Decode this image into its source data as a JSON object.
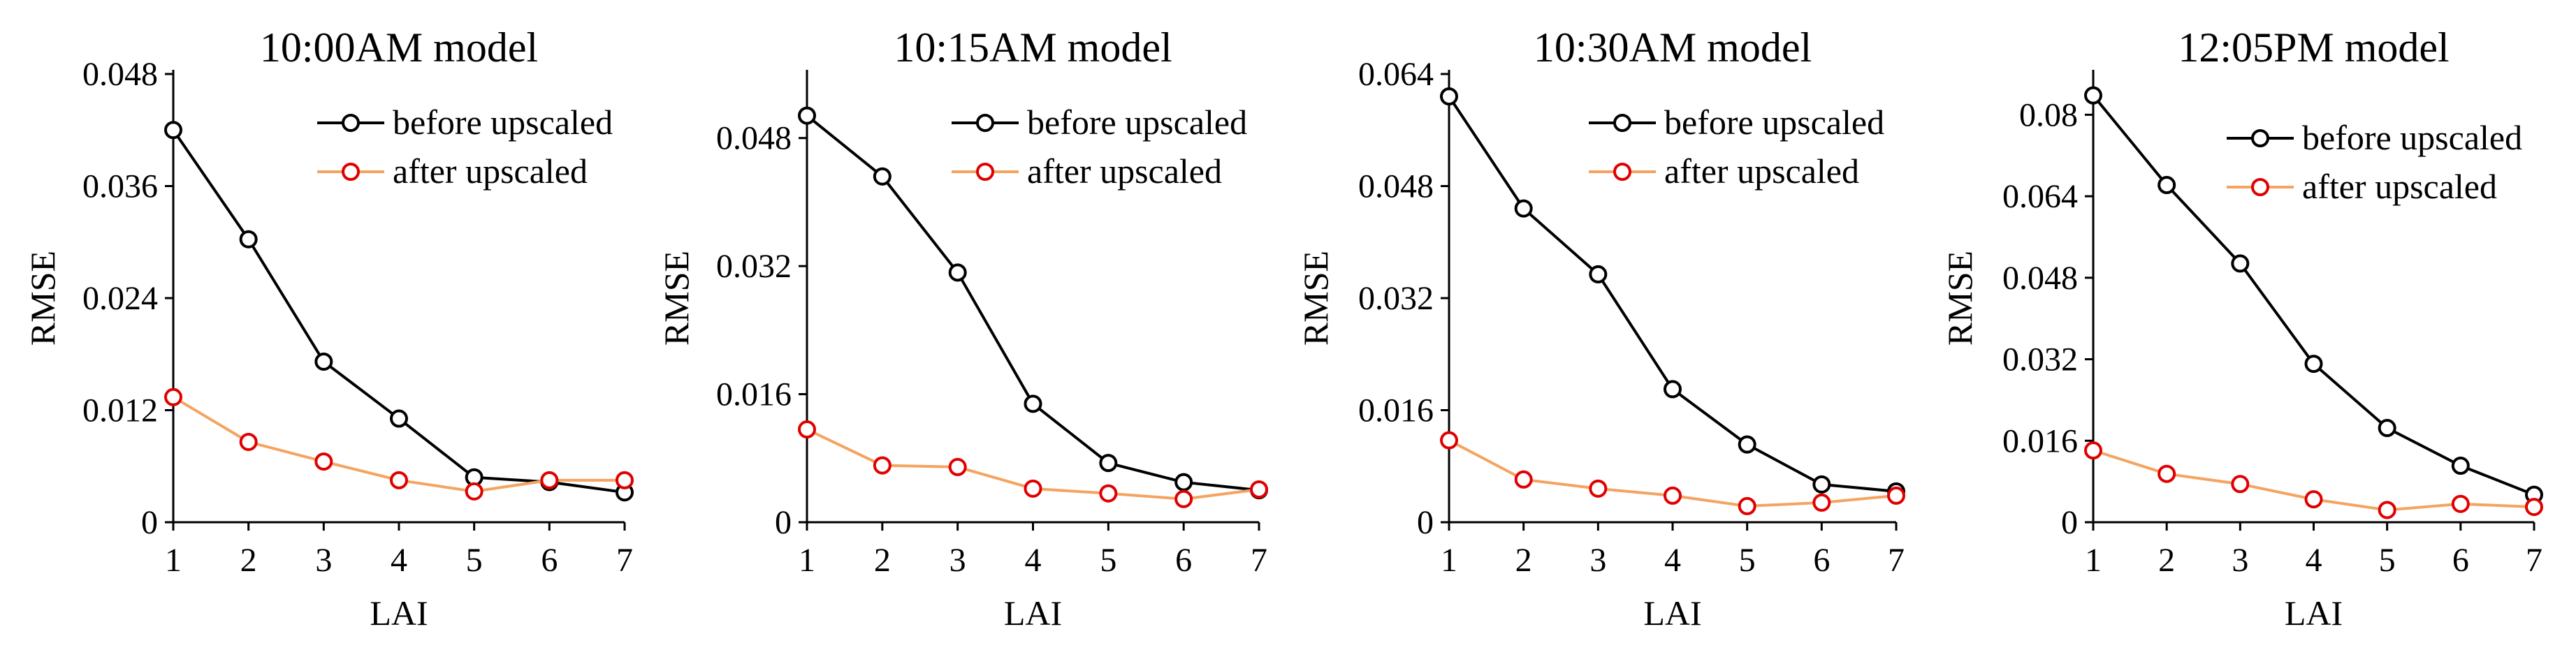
{
  "chart_data": [
    {
      "type": "line",
      "title": "10:00AM model",
      "xlabel": "LAI",
      "ylabel": "RMSE",
      "x": [
        1,
        2,
        3,
        4,
        5,
        6,
        7
      ],
      "xticks": [
        "1",
        "2",
        "3",
        "4",
        "5",
        "6",
        "7"
      ],
      "ylim": [
        0,
        0.048
      ],
      "yticks": [
        "0",
        "0.012",
        "0.024",
        "0.036",
        "0.048"
      ],
      "legend_position": "top-right",
      "series": [
        {
          "name": "before upscaled",
          "color": "#000000",
          "values": [
            0.042,
            0.0303,
            0.0172,
            0.0111,
            0.0048,
            0.0043,
            0.0032
          ]
        },
        {
          "name": "after upscaled",
          "color": "#F4A460",
          "marker_color": "#E00000",
          "values": [
            0.0134,
            0.0086,
            0.0065,
            0.0045,
            0.0033,
            0.0045,
            0.0045
          ]
        }
      ]
    },
    {
      "type": "line",
      "title": "10:15AM model",
      "xlabel": "LAI",
      "ylabel": "RMSE",
      "x": [
        1,
        2,
        3,
        4,
        5,
        6,
        7
      ],
      "xticks": [
        "1",
        "2",
        "3",
        "4",
        "5",
        "6",
        "7"
      ],
      "ylim": [
        0,
        0.056
      ],
      "yticks": [
        "0",
        "0.016",
        "0.032",
        "0.048"
      ],
      "legend_position": "top-right",
      "series": [
        {
          "name": "before upscaled",
          "color": "#000000",
          "values": [
            0.0508,
            0.0432,
            0.0312,
            0.0148,
            0.0074,
            0.005,
            0.004
          ]
        },
        {
          "name": "after upscaled",
          "color": "#F4A460",
          "marker_color": "#E00000",
          "values": [
            0.0116,
            0.0071,
            0.0069,
            0.0042,
            0.0036,
            0.0029,
            0.0041
          ]
        }
      ]
    },
    {
      "type": "line",
      "title": "10:30AM model",
      "xlabel": "LAI",
      "ylabel": "RMSE",
      "x": [
        1,
        2,
        3,
        4,
        5,
        6,
        7
      ],
      "xticks": [
        "1",
        "2",
        "3",
        "4",
        "5",
        "6",
        "7"
      ],
      "ylim": [
        0,
        0.064
      ],
      "yticks": [
        "0",
        "0.016",
        "0.032",
        "0.048",
        "0.064"
      ],
      "legend_position": "top-right",
      "series": [
        {
          "name": "before upscaled",
          "color": "#000000",
          "values": [
            0.0608,
            0.0448,
            0.0354,
            0.019,
            0.0111,
            0.0054,
            0.0044
          ]
        },
        {
          "name": "after upscaled",
          "color": "#F4A460",
          "marker_color": "#E00000",
          "values": [
            0.0117,
            0.0061,
            0.0048,
            0.0038,
            0.0023,
            0.0028,
            0.0038
          ]
        }
      ]
    },
    {
      "type": "line",
      "title": "12:05PM model",
      "xlabel": "LAI",
      "ylabel": "RMSE",
      "x": [
        1,
        2,
        3,
        4,
        5,
        6,
        7
      ],
      "xticks": [
        "1",
        "2",
        "3",
        "4",
        "5",
        "6",
        "7"
      ],
      "ylim": [
        0,
        0.088
      ],
      "yticks": [
        "0",
        "0.016",
        "0.032",
        "0.048",
        "0.064",
        "0.08"
      ],
      "legend_position": "top-right",
      "series": [
        {
          "name": "before upscaled",
          "color": "#000000",
          "values": [
            0.0838,
            0.0662,
            0.0508,
            0.0311,
            0.0185,
            0.0111,
            0.0054
          ]
        },
        {
          "name": "after upscaled",
          "color": "#F4A460",
          "marker_color": "#E00000",
          "values": [
            0.0141,
            0.0095,
            0.0075,
            0.0045,
            0.0024,
            0.0036,
            0.003
          ]
        }
      ]
    }
  ]
}
